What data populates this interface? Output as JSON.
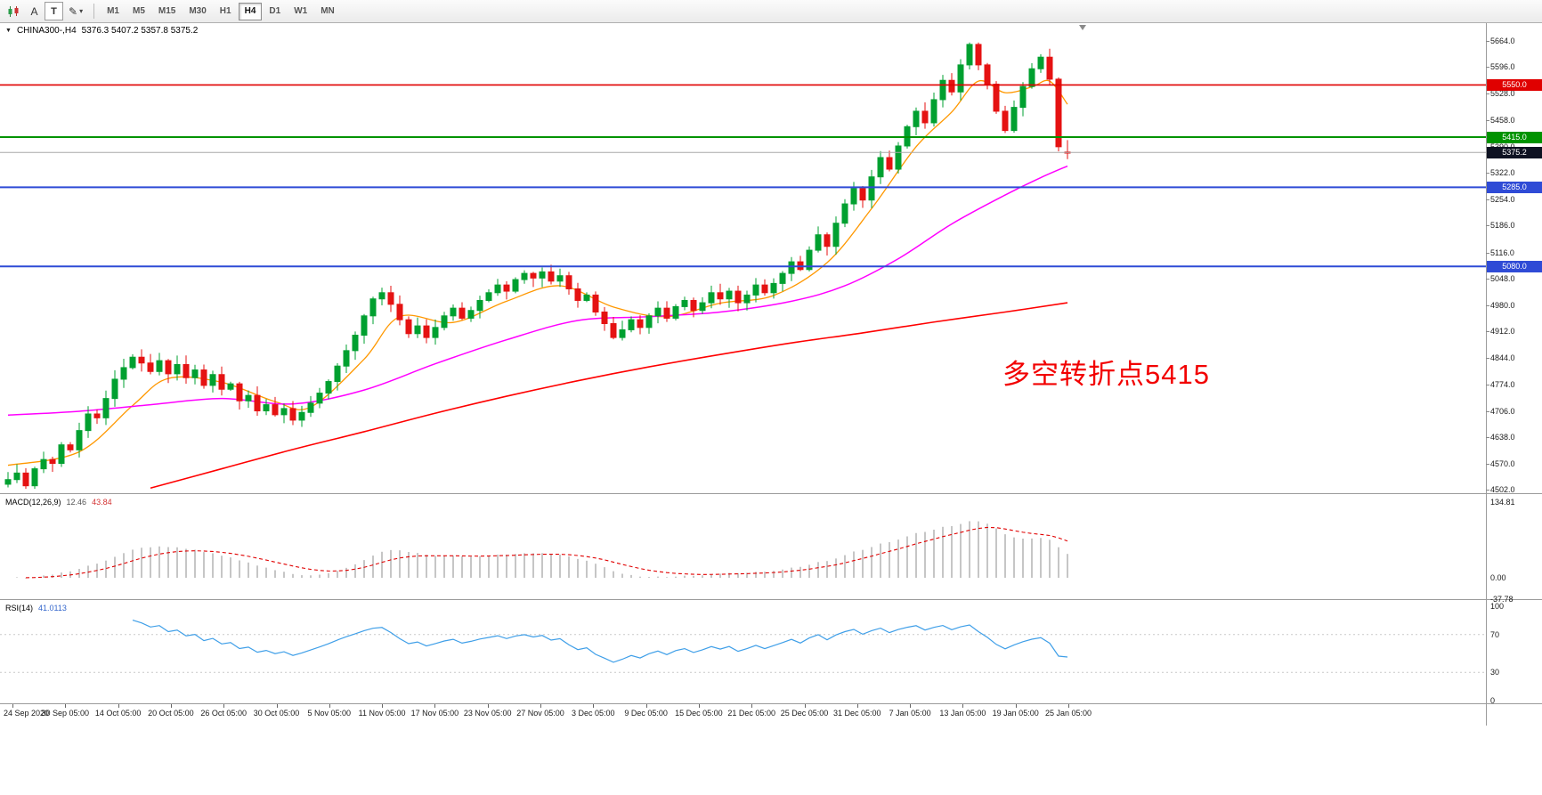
{
  "toolbar": {
    "a_label": "A",
    "t_label": "T",
    "caret": "▾",
    "timeframes": [
      "M1",
      "M5",
      "M15",
      "M30",
      "H1",
      "H4",
      "D1",
      "W1",
      "MN"
    ],
    "active_timeframe": "H4"
  },
  "chart": {
    "caret_icon": "▼",
    "title": "CHINA300-,H4",
    "ohlc": "5376.3 5407.2 5357.8 5375.2",
    "annotation": {
      "text": "多空转折点5415",
      "color": "#f20000"
    }
  },
  "chart_data": {
    "type": "candlestick",
    "symbol": "CHINA300-",
    "timeframe": "H4",
    "ylim": [
      4502,
      5664
    ],
    "y_ticks": [
      "5664.0",
      "5596.0",
      "5528.0",
      "5458.0",
      "5390.0",
      "5322.0",
      "5254.0",
      "5186.0",
      "5116.0",
      "5048.0",
      "4980.0",
      "4912.0",
      "4844.0",
      "4774.0",
      "4706.0",
      "4638.0",
      "4570.0",
      "4502.0"
    ],
    "x_labels": [
      "24 Sep 2020",
      "30 Sep 05:00",
      "14 Oct 05:00",
      "20 Oct 05:00",
      "26 Oct 05:00",
      "30 Oct 05:00",
      "5 Nov 05:00",
      "11 Nov 05:00",
      "17 Nov 05:00",
      "23 Nov 05:00",
      "27 Nov 05:00",
      "3 Dec 05:00",
      "9 Dec 05:00",
      "15 Dec 05:00",
      "21 Dec 05:00",
      "25 Dec 05:00",
      "31 Dec 05:00",
      "7 Jan 05:00",
      "13 Jan 05:00",
      "19 Jan 05:00",
      "25 Jan 05:00"
    ],
    "closes": [
      4528,
      4545,
      4512,
      4556,
      4580,
      4570,
      4618,
      4605,
      4655,
      4698,
      4688,
      4738,
      4788,
      4818,
      4845,
      4830,
      4808,
      4836,
      4802,
      4826,
      4792,
      4812,
      4772,
      4800,
      4762,
      4776,
      4732,
      4746,
      4706,
      4722,
      4696,
      4712,
      4682,
      4702,
      4726,
      4752,
      4782,
      4822,
      4862,
      4902,
      4952,
      4996,
      5012,
      4982,
      4942,
      4906,
      4926,
      4896,
      4922,
      4952,
      4972,
      4946,
      4966,
      4992,
      5012,
      5032,
      5016,
      5046,
      5062,
      5050,
      5066,
      5042,
      5056,
      5022,
      4992,
      5006,
      4962,
      4932,
      4896,
      4916,
      4942,
      4922,
      4952,
      4972,
      4946,
      4976,
      4992,
      4966,
      4986,
      5012,
      4996,
      5016,
      4986,
      5006,
      5032,
      5012,
      5036,
      5062,
      5092,
      5072,
      5122,
      5162,
      5132,
      5192,
      5242,
      5282,
      5252,
      5312,
      5362,
      5332,
      5392,
      5442,
      5482,
      5452,
      5512,
      5562,
      5532,
      5602,
      5655,
      5602,
      5552,
      5482,
      5432,
      5492,
      5546,
      5592,
      5622,
      5565,
      5390,
      5375.2
    ],
    "last_bar": {
      "open": 5376.3,
      "high": 5407.2,
      "low": 5357.8,
      "close": 5375.2
    },
    "current_price": 5375.2,
    "hlines": [
      {
        "price": 5550,
        "color": "#e00000",
        "width": 1.6
      },
      {
        "price": 5415,
        "color": "#009300",
        "width": 2
      },
      {
        "price": 5285,
        "color": "#2f4bd6",
        "width": 2
      },
      {
        "price": 5080,
        "color": "#2f4bd6",
        "width": 2
      }
    ],
    "moving_averages": [
      {
        "name": "fast-ma",
        "color": "#ff9800",
        "width": 1.3,
        "points": [
          [
            0,
            4565
          ],
          [
            8,
            4600
          ],
          [
            14,
            4720
          ],
          [
            18,
            4790
          ],
          [
            24,
            4780
          ],
          [
            30,
            4730
          ],
          [
            34,
            4716
          ],
          [
            40,
            4840
          ],
          [
            44,
            4950
          ],
          [
            50,
            4935
          ],
          [
            56,
            4990
          ],
          [
            62,
            5030
          ],
          [
            68,
            4975
          ],
          [
            74,
            4950
          ],
          [
            80,
            4985
          ],
          [
            86,
            5005
          ],
          [
            92,
            5090
          ],
          [
            97,
            5230
          ],
          [
            102,
            5390
          ],
          [
            106,
            5480
          ],
          [
            109,
            5560
          ],
          [
            112,
            5530
          ],
          [
            115,
            5545
          ],
          [
            117,
            5560
          ],
          [
            119,
            5500
          ]
        ]
      },
      {
        "name": "mid-ma",
        "color": "#ff00ff",
        "width": 1.5,
        "points": [
          [
            0,
            4695
          ],
          [
            8,
            4705
          ],
          [
            16,
            4722
          ],
          [
            24,
            4738
          ],
          [
            32,
            4724
          ],
          [
            40,
            4760
          ],
          [
            48,
            4828
          ],
          [
            56,
            4890
          ],
          [
            64,
            4940
          ],
          [
            72,
            4950
          ],
          [
            80,
            4962
          ],
          [
            88,
            4990
          ],
          [
            94,
            5030
          ],
          [
            100,
            5100
          ],
          [
            106,
            5190
          ],
          [
            112,
            5265
          ],
          [
            116,
            5310
          ],
          [
            119,
            5340
          ]
        ]
      },
      {
        "name": "slow-ma",
        "color": "#ff0000",
        "width": 1.6,
        "points": [
          [
            16,
            4506
          ],
          [
            24,
            4556
          ],
          [
            32,
            4606
          ],
          [
            40,
            4652
          ],
          [
            48,
            4700
          ],
          [
            56,
            4744
          ],
          [
            64,
            4784
          ],
          [
            72,
            4820
          ],
          [
            80,
            4852
          ],
          [
            88,
            4882
          ],
          [
            96,
            4908
          ],
          [
            104,
            4936
          ],
          [
            112,
            4962
          ],
          [
            119,
            4986
          ]
        ]
      }
    ],
    "colors": {
      "up": "#00a030",
      "down": "#e51212",
      "current_badge": "#0e1222",
      "current_line": "#a8a8a8"
    }
  },
  "macd": {
    "label": "MACD(12,26,9)",
    "value_main": "12.46",
    "value_signal": "43.84",
    "axis": [
      "134.81",
      "0.00",
      "-37.78"
    ],
    "fast": 12,
    "slow": 26,
    "signal": 9,
    "histogram_color": "#c6c6c6",
    "signal_color": "#e00000"
  },
  "rsi": {
    "label": "RSI(14)",
    "value": "41.0113",
    "period": 14,
    "axis": [
      100,
      70,
      30,
      0
    ],
    "levels": [
      70,
      30
    ],
    "line_color": "#3f9fe8"
  }
}
